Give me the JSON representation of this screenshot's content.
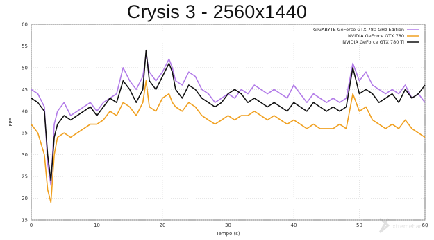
{
  "chart_data": {
    "type": "line",
    "title": "Crysis 3 - 2560x1440",
    "xlabel": "Tempo (s)",
    "ylabel": "FPS",
    "xlim": [
      0,
      60
    ],
    "ylim": [
      15,
      60
    ],
    "x_ticks": [
      0,
      10,
      20,
      30,
      40,
      50,
      60
    ],
    "y_ticks": [
      15,
      20,
      25,
      30,
      35,
      40,
      45,
      50,
      55,
      60
    ],
    "grid": true,
    "legend_position": "top-right",
    "series": [
      {
        "name": "GIGABYTE GeForce GTX 780 GHz Edition",
        "color": "#b27be8",
        "x": [
          0,
          1,
          2,
          2.5,
          3,
          3.5,
          4,
          5,
          6,
          7,
          8,
          9,
          10,
          11,
          12,
          13,
          14,
          15,
          16,
          17,
          17.5,
          18,
          19,
          20,
          21,
          21.5,
          22,
          23,
          24,
          25,
          26,
          27,
          28,
          29,
          30,
          31,
          32,
          33,
          34,
          35,
          36,
          37,
          38,
          39,
          40,
          41,
          42,
          43,
          44,
          45,
          46,
          47,
          48,
          49,
          50,
          51,
          52,
          53,
          54,
          55,
          56,
          57,
          58,
          59,
          60
        ],
        "values": [
          45,
          44,
          41,
          28,
          23,
          37,
          40,
          42,
          39,
          40,
          41,
          42,
          40,
          42,
          43,
          44,
          50,
          47,
          45,
          48,
          53,
          49,
          47,
          49,
          52,
          50,
          47,
          46,
          49,
          48,
          45,
          44,
          42,
          43,
          44,
          43,
          45,
          44,
          46,
          45,
          44,
          45,
          44,
          43,
          46,
          44,
          42,
          44,
          43,
          42,
          43,
          42,
          43,
          51,
          47,
          49,
          46,
          45,
          44,
          45,
          44,
          46,
          43,
          44,
          42
        ]
      },
      {
        "name": "NVIDIA GeForce GTX 780",
        "color": "#f0a020",
        "x": [
          0,
          1,
          2,
          2.5,
          3,
          3.5,
          4,
          5,
          6,
          7,
          8,
          9,
          10,
          11,
          12,
          13,
          14,
          15,
          16,
          17,
          17.5,
          18,
          19,
          20,
          21,
          21.5,
          22,
          23,
          24,
          25,
          26,
          27,
          28,
          29,
          30,
          31,
          32,
          33,
          34,
          35,
          36,
          37,
          38,
          39,
          40,
          41,
          42,
          43,
          44,
          45,
          46,
          47,
          48,
          49,
          50,
          51,
          52,
          53,
          54,
          55,
          56,
          57,
          58,
          59,
          60
        ],
        "values": [
          37,
          35,
          30,
          22,
          19,
          30,
          34,
          35,
          34,
          35,
          36,
          37,
          37,
          38,
          40,
          39,
          42,
          41,
          39,
          42,
          47,
          41,
          40,
          43,
          44,
          42,
          41,
          40,
          42,
          41,
          39,
          38,
          37,
          38,
          39,
          38,
          39,
          39,
          40,
          39,
          38,
          39,
          38,
          37,
          38,
          37,
          36,
          37,
          36,
          36,
          36,
          37,
          36,
          44,
          40,
          41,
          38,
          37,
          36,
          37,
          36,
          38,
          36,
          35,
          34
        ]
      },
      {
        "name": "NVIDIA GeForce GTX 780 Ti",
        "color": "#111111",
        "x": [
          0,
          1,
          2,
          2.5,
          3,
          3.5,
          4,
          5,
          6,
          7,
          8,
          9,
          10,
          11,
          12,
          13,
          14,
          15,
          16,
          17,
          17.5,
          18,
          19,
          20,
          21,
          21.5,
          22,
          23,
          24,
          25,
          26,
          27,
          28,
          29,
          30,
          31,
          32,
          33,
          34,
          35,
          36,
          37,
          38,
          39,
          40,
          41,
          42,
          43,
          44,
          45,
          46,
          47,
          48,
          49,
          50,
          51,
          52,
          53,
          54,
          55,
          56,
          57,
          58,
          59,
          60
        ],
        "values": [
          43,
          42,
          40,
          30,
          24,
          34,
          37,
          39,
          38,
          39,
          40,
          41,
          39,
          41,
          43,
          42,
          47,
          45,
          42,
          45,
          54,
          47,
          45,
          48,
          51,
          49,
          45,
          43,
          46,
          45,
          43,
          42,
          41,
          42,
          44,
          45,
          44,
          42,
          43,
          42,
          41,
          42,
          41,
          40,
          42,
          41,
          40,
          42,
          41,
          40,
          41,
          40,
          41,
          50,
          44,
          45,
          44,
          42,
          43,
          44,
          42,
          45,
          43,
          44,
          46
        ]
      }
    ]
  },
  "watermark": {
    "text": "xtremehardware"
  }
}
